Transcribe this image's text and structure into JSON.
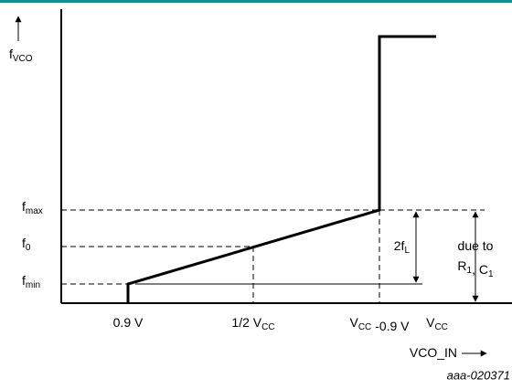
{
  "y_axis_label": [
    {
      "text": "f"
    },
    {
      "sub": "VCO"
    }
  ],
  "y_labels": [
    [
      {
        "text": "f"
      },
      {
        "sub": "max"
      }
    ],
    [
      {
        "text": "f"
      },
      {
        "sub": "0"
      }
    ],
    [
      {
        "text": "f"
      },
      {
        "sub": "min"
      }
    ]
  ],
  "x_labels": [
    [
      {
        "text": "0.9 V"
      }
    ],
    [
      {
        "text": "1/2 V"
      },
      {
        "sub": "CC"
      }
    ],
    [
      {
        "text": "V"
      },
      {
        "sub": "CC"
      },
      {
        "text": " -0.9 V"
      }
    ],
    [
      {
        "text": "V"
      },
      {
        "sub": "CC"
      }
    ]
  ],
  "x_axis_label": [
    {
      "text": "VCO_IN"
    }
  ],
  "annotations": {
    "two_fl": [
      {
        "text": "2f"
      },
      {
        "sub": "L"
      }
    ],
    "due_to": [
      {
        "text": "due to"
      }
    ],
    "r1_c1": [
      {
        "text": "R"
      },
      {
        "sub": "1"
      },
      {
        "text": ", C"
      },
      {
        "sub": "1"
      }
    ]
  },
  "figure_id": "aaa-020371"
}
